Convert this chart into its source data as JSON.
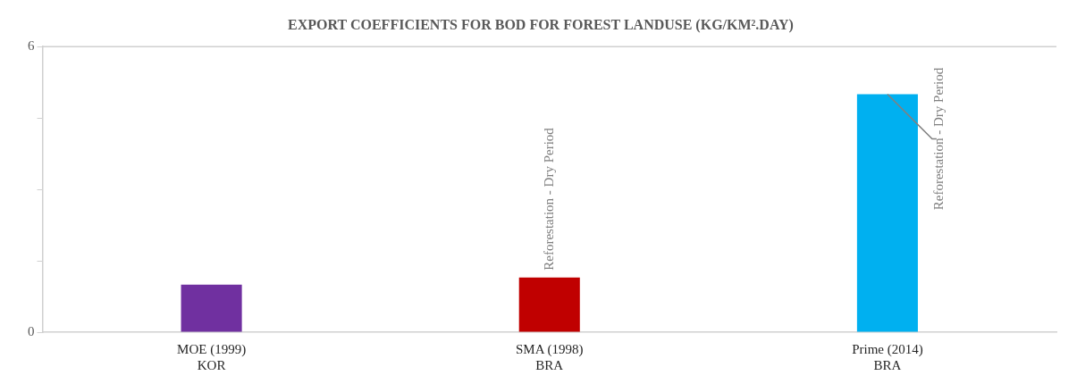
{
  "chart_data": {
    "type": "bar",
    "title": "EXPORT COEFFICIENTS FOR BOD FOR FOREST LANDUSE (KG/KM².DAY)",
    "categories": [
      "MOE (1999)\nKOR",
      "SMA (1998)\nBRA",
      "Prime (2014)\nBRA"
    ],
    "values": [
      1.0,
      1.15,
      5.0
    ],
    "colors": [
      "#7030a0",
      "#c00000",
      "#00b0f0"
    ],
    "ylim": [
      0,
      6
    ],
    "yticks": [
      0,
      {
        "value": 1.5,
        "label": null
      },
      {
        "value": 3,
        "label": null
      },
      {
        "value": 4.5,
        "label": null
      },
      6
    ],
    "annotations": [
      {
        "text": "Reforestation - Dry Period",
        "x": "SMA (1998)\nBRA",
        "y": 1.15
      },
      {
        "text": "Reforestation - Dry Period",
        "x": "Prime (2014)\nBRA",
        "y": 5.0
      }
    ]
  }
}
